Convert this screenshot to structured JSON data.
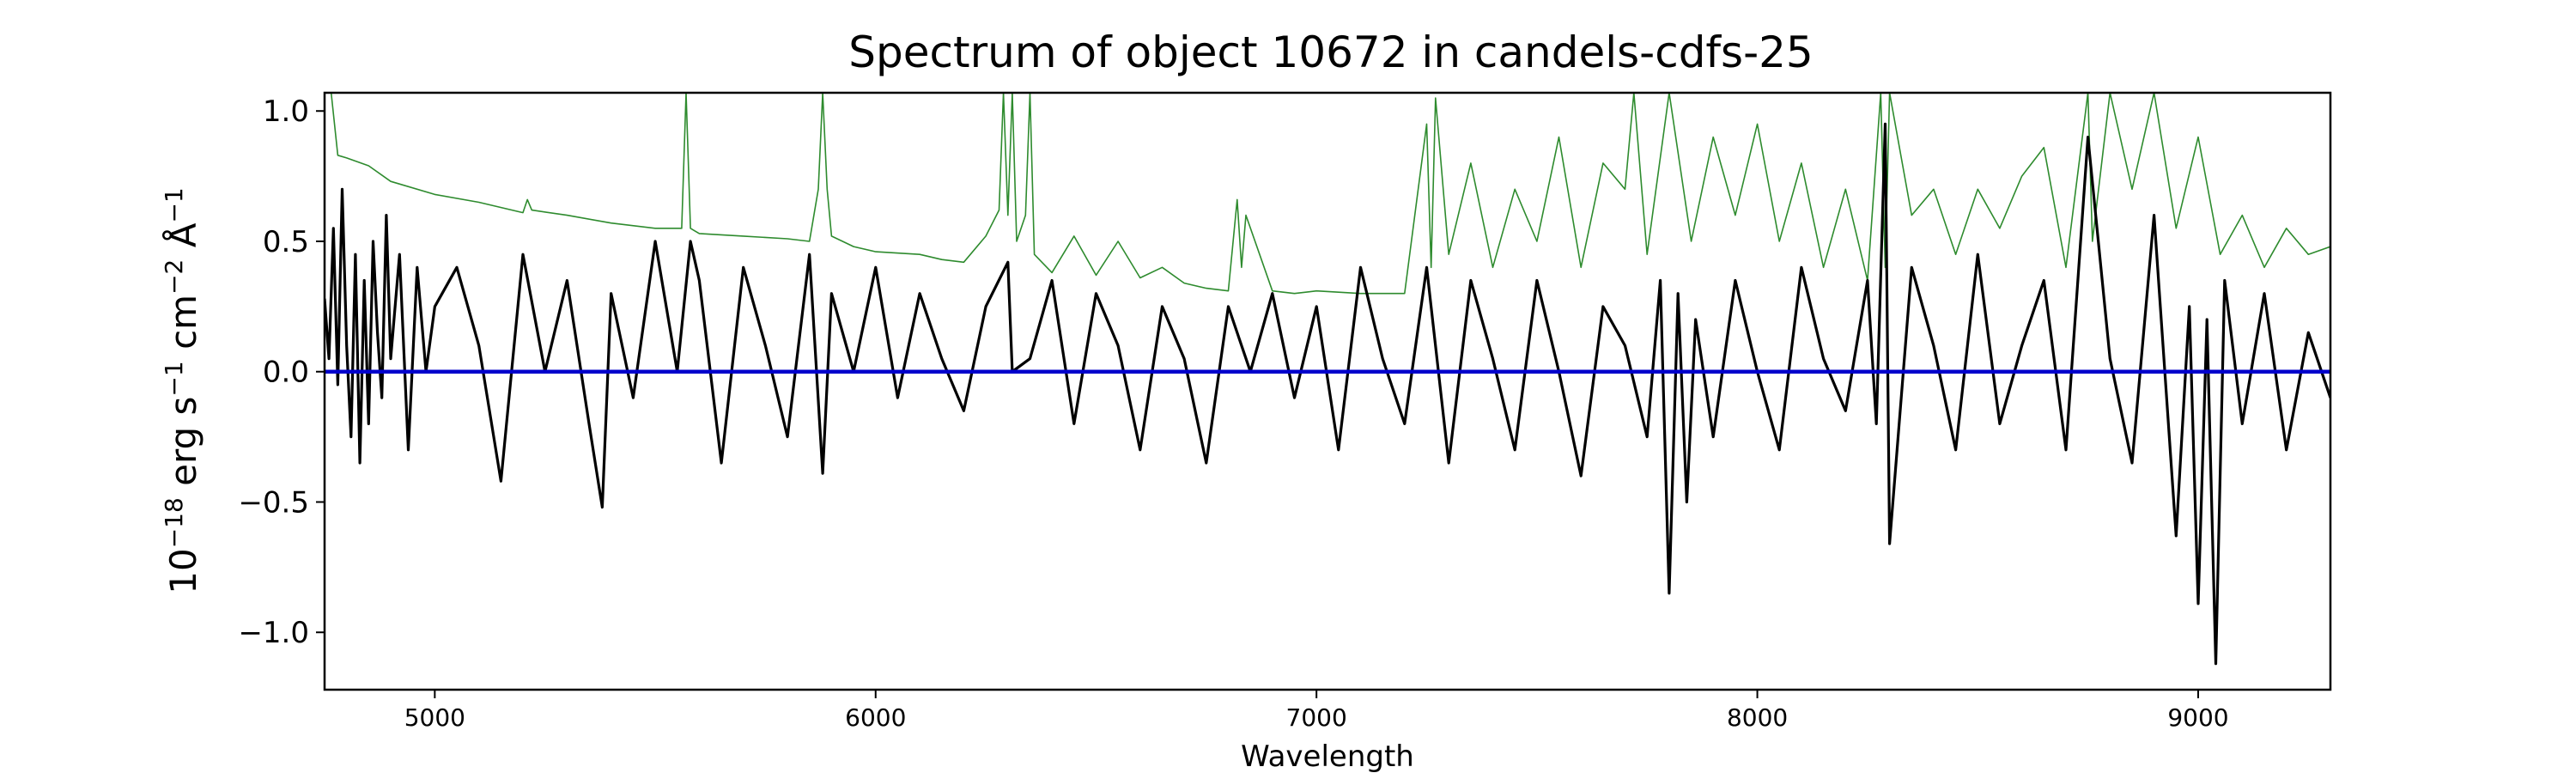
{
  "chart_data": {
    "type": "line",
    "title": "Spectrum of object 10672 in candels-cdfs-25",
    "xlabel": "Wavelength",
    "ylabel_parts": {
      "base": "10",
      "exp": "−18",
      "erg": " erg s",
      "s_exp": "−1",
      "cm": " cm",
      "cm_exp": "−2",
      "ang": " Å",
      "ang_exp": "−1"
    },
    "xlim": [
      4750,
      9300
    ],
    "ylim": [
      -1.22,
      1.07
    ],
    "xticks": [
      5000,
      6000,
      7000,
      8000,
      9000
    ],
    "xtick_labels": [
      "5000",
      "6000",
      "7000",
      "8000",
      "9000"
    ],
    "yticks": [
      -1.0,
      -0.5,
      0.0,
      0.5,
      1.0
    ],
    "ytick_labels": [
      "−1.0",
      "−0.5",
      "0.0",
      "0.5",
      "1.0"
    ],
    "grid": false,
    "colors": {
      "flux": "#000000",
      "error": "#2e8b2e",
      "zero": "#0000cc"
    },
    "series": [
      {
        "role": "flux",
        "x": [
          4750,
          4760,
          4770,
          4780,
          4790,
          4800,
          4810,
          4820,
          4830,
          4840,
          4850,
          4860,
          4870,
          4880,
          4890,
          4900,
          4920,
          4940,
          4960,
          4980,
          5000,
          5050,
          5100,
          5150,
          5200,
          5250,
          5300,
          5350,
          5380,
          5400,
          5450,
          5500,
          5550,
          5580,
          5600,
          5650,
          5700,
          5750,
          5800,
          5850,
          5880,
          5900,
          5950,
          6000,
          6050,
          6100,
          6150,
          6200,
          6250,
          6300,
          6310,
          6350,
          6400,
          6450,
          6500,
          6550,
          6600,
          6650,
          6700,
          6750,
          6800,
          6850,
          6900,
          6950,
          7000,
          7050,
          7100,
          7150,
          7200,
          7250,
          7300,
          7350,
          7400,
          7450,
          7500,
          7550,
          7600,
          7650,
          7700,
          7750,
          7780,
          7800,
          7820,
          7840,
          7860,
          7900,
          7950,
          8000,
          8050,
          8100,
          8150,
          8200,
          8250,
          8270,
          8290,
          8300,
          8350,
          8400,
          8450,
          8500,
          8550,
          8600,
          8650,
          8700,
          8750,
          8800,
          8850,
          8900,
          8950,
          8980,
          9000,
          9020,
          9040,
          9060,
          9100,
          9150,
          9200,
          9250,
          9300
        ],
        "y": [
          0.28,
          0.05,
          0.55,
          -0.05,
          0.7,
          0.1,
          -0.25,
          0.45,
          -0.35,
          0.35,
          -0.2,
          0.5,
          0.15,
          -0.1,
          0.6,
          0.05,
          0.45,
          -0.3,
          0.4,
          0.0,
          0.25,
          0.4,
          0.1,
          -0.42,
          0.45,
          0.0,
          0.35,
          -0.2,
          -0.52,
          0.3,
          -0.1,
          0.5,
          0.0,
          0.5,
          0.35,
          -0.35,
          0.4,
          0.1,
          -0.25,
          0.45,
          -0.39,
          0.3,
          0.0,
          0.4,
          -0.1,
          0.3,
          0.05,
          -0.15,
          0.25,
          0.42,
          0.0,
          0.05,
          0.35,
          -0.2,
          0.3,
          0.1,
          -0.3,
          0.25,
          0.05,
          -0.35,
          0.25,
          0.0,
          0.3,
          -0.1,
          0.25,
          -0.3,
          0.4,
          0.05,
          -0.2,
          0.4,
          -0.35,
          0.35,
          0.05,
          -0.3,
          0.35,
          0.0,
          -0.4,
          0.25,
          0.1,
          -0.25,
          0.35,
          -0.85,
          0.3,
          -0.5,
          0.2,
          -0.25,
          0.35,
          0.0,
          -0.3,
          0.4,
          0.05,
          -0.15,
          0.35,
          -0.2,
          0.95,
          -0.66,
          0.4,
          0.1,
          -0.3,
          0.45,
          -0.2,
          0.1,
          0.35,
          -0.3,
          0.9,
          0.05,
          -0.35,
          0.6,
          -0.63,
          0.25,
          -0.89,
          0.2,
          -1.12,
          0.35,
          -0.2,
          0.3,
          -0.3,
          0.15,
          -0.1
        ]
      },
      {
        "role": "error",
        "x": [
          4750,
          4765,
          4780,
          4800,
          4850,
          4900,
          5000,
          5100,
          5200,
          5210,
          5220,
          5300,
          5400,
          5500,
          5560,
          5570,
          5580,
          5590,
          5600,
          5700,
          5800,
          5850,
          5870,
          5880,
          5890,
          5900,
          5950,
          6000,
          6100,
          6150,
          6200,
          6250,
          6280,
          6290,
          6300,
          6310,
          6320,
          6340,
          6350,
          6360,
          6400,
          6450,
          6500,
          6550,
          6600,
          6650,
          6700,
          6750,
          6800,
          6820,
          6830,
          6840,
          6900,
          6950,
          7000,
          7100,
          7200,
          7250,
          7260,
          7270,
          7300,
          7350,
          7400,
          7450,
          7500,
          7550,
          7600,
          7650,
          7700,
          7720,
          7750,
          7800,
          7850,
          7900,
          7950,
          8000,
          8050,
          8100,
          8150,
          8200,
          8250,
          8280,
          8290,
          8300,
          8350,
          8400,
          8450,
          8500,
          8550,
          8600,
          8650,
          8700,
          8750,
          8760,
          8800,
          8850,
          8900,
          8950,
          9000,
          9050,
          9100,
          9150,
          9200,
          9250,
          9300
        ],
        "y": [
          1.07,
          1.07,
          0.83,
          0.82,
          0.79,
          0.73,
          0.68,
          0.65,
          0.61,
          0.66,
          0.62,
          0.6,
          0.57,
          0.55,
          0.55,
          1.07,
          0.55,
          0.54,
          0.53,
          0.52,
          0.51,
          0.5,
          0.7,
          1.07,
          0.7,
          0.52,
          0.48,
          0.46,
          0.45,
          0.43,
          0.42,
          0.52,
          0.62,
          1.07,
          0.6,
          1.07,
          0.5,
          0.6,
          1.07,
          0.45,
          0.38,
          0.52,
          0.37,
          0.5,
          0.36,
          0.4,
          0.34,
          0.32,
          0.31,
          0.66,
          0.4,
          0.6,
          0.31,
          0.3,
          0.31,
          0.3,
          0.3,
          0.95,
          0.4,
          1.05,
          0.45,
          0.8,
          0.4,
          0.7,
          0.5,
          0.9,
          0.4,
          0.8,
          0.7,
          1.07,
          0.45,
          1.07,
          0.5,
          0.9,
          0.6,
          0.95,
          0.5,
          0.8,
          0.4,
          0.7,
          0.35,
          1.07,
          0.4,
          1.07,
          0.6,
          0.7,
          0.45,
          0.7,
          0.55,
          0.75,
          0.86,
          0.4,
          1.07,
          0.5,
          1.07,
          0.7,
          1.07,
          0.55,
          0.9,
          0.45,
          0.6,
          0.4,
          0.55,
          0.45,
          0.48
        ]
      },
      {
        "role": "zero",
        "x": [
          4750,
          9300
        ],
        "y": [
          0,
          0
        ]
      }
    ]
  }
}
